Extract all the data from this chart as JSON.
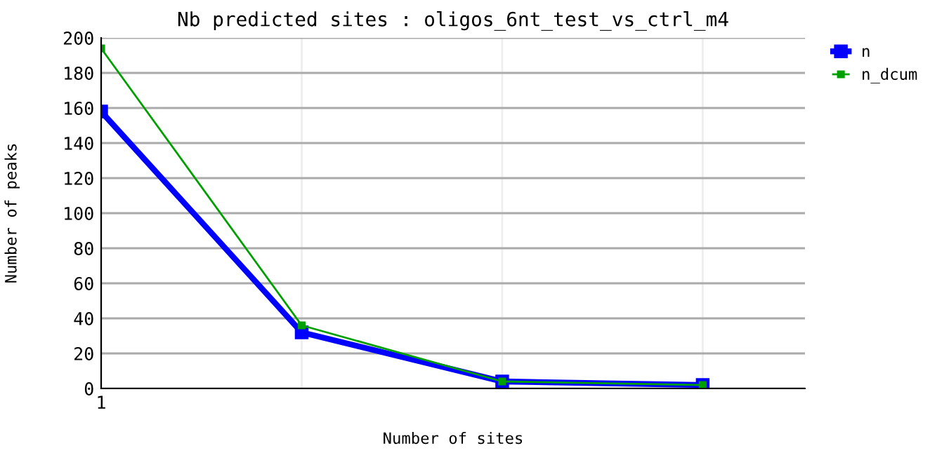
{
  "chart_data": {
    "type": "line",
    "title": "Nb predicted sites : oligos_6nt_test_vs_ctrl_m4",
    "xlabel": "Number of sites",
    "ylabel": "Number of peaks",
    "categories": [
      "1",
      null,
      null,
      null
    ],
    "series": [
      {
        "name": "n",
        "color": "#0000ff",
        "values": [
          158,
          32,
          4,
          2
        ]
      },
      {
        "name": "n_dcum",
        "color": "#00a000",
        "values": [
          194,
          36,
          4,
          2
        ]
      }
    ],
    "ylim": [
      0,
      200
    ],
    "yticks": [
      0,
      20,
      40,
      60,
      80,
      100,
      120,
      140,
      160,
      180,
      200
    ],
    "grid": true,
    "legend": "top right",
    "marker": "square",
    "line_style": "solid"
  }
}
